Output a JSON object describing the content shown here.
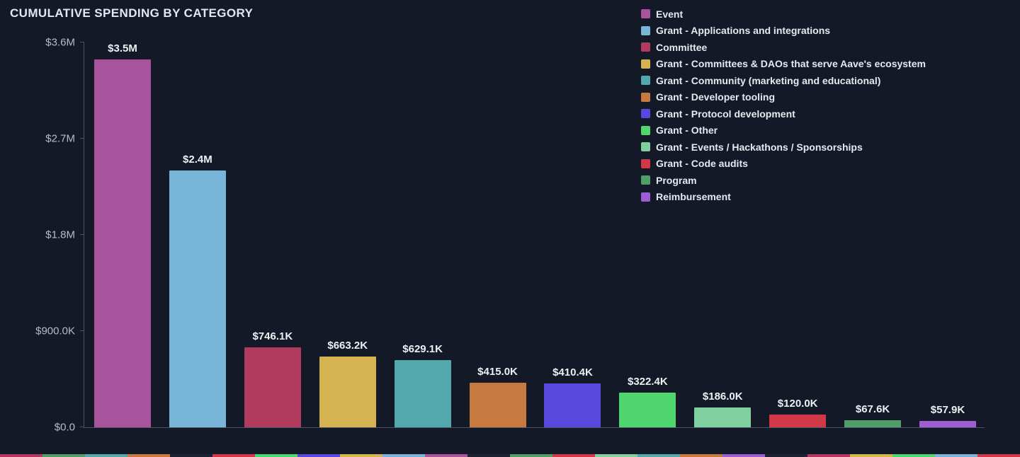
{
  "title": "CUMULATIVE SPENDING BY CATEGORY",
  "colors": {
    "background": "#141927",
    "axis": "#4a5163",
    "tick_label": "#b6bcc8",
    "value_label": "#edeff3",
    "title_text": "#e3e7ee",
    "legend_text": "#e6e9ee"
  },
  "legend": {
    "position": "top-right",
    "items": [
      {
        "label": "Event",
        "color": "#a8549c"
      },
      {
        "label": "Grant - Applications and integrations",
        "color": "#79b5d8"
      },
      {
        "label": "Committee",
        "color": "#b13a5f"
      },
      {
        "label": "Grant - Committees & DAOs that serve Aave's ecosystem",
        "color": "#d6b351"
      },
      {
        "label": "Grant - Community (marketing and educational)",
        "color": "#53a8ac"
      },
      {
        "label": "Grant - Developer tooling",
        "color": "#c77a3f"
      },
      {
        "label": "Grant - Protocol development",
        "color": "#5948dd"
      },
      {
        "label": "Grant - Other",
        "color": "#4fd66e"
      },
      {
        "label": "Grant - Events / Hackathons / Sponsorships",
        "color": "#7fcf9f"
      },
      {
        "label": "Grant - Code audits",
        "color": "#d23948"
      },
      {
        "label": "Program",
        "color": "#4e9e66"
      },
      {
        "label": "Reimbursement",
        "color": "#9d5ed3"
      }
    ]
  },
  "chart_data": {
    "type": "bar",
    "title": "CUMULATIVE SPENDING BY CATEGORY",
    "categories": [
      "Event",
      "Grant - Applications and integrations",
      "Committee",
      "Grant - Committees & DAOs that serve Aave's ecosystem",
      "Grant - Community (marketing and educational)",
      "Grant - Developer tooling",
      "Grant - Protocol development",
      "Grant - Other",
      "Grant - Events / Hackathons / Sponsorships",
      "Grant - Code audits",
      "Program",
      "Reimbursement"
    ],
    "values": [
      3500000,
      2400000,
      746100,
      663200,
      629100,
      415000,
      410400,
      322400,
      186000,
      120000,
      67600,
      57900
    ],
    "value_labels": [
      "$3.5M",
      "$2.4M",
      "$746.1K",
      "$663.2K",
      "$629.1K",
      "$415.0K",
      "$410.4K",
      "$322.4K",
      "$186.0K",
      "$120.0K",
      "$67.6K",
      "$57.9K"
    ],
    "bar_colors": [
      "#a8549c",
      "#79b5d8",
      "#b13a5f",
      "#d6b351",
      "#53a8ac",
      "#c77a3f",
      "#5948dd",
      "#4fd66e",
      "#7fcf9f",
      "#d23948",
      "#4e9e66",
      "#9d5ed3"
    ],
    "xlabel": "",
    "ylabel": "",
    "ylim": [
      0,
      3600000
    ],
    "yticks": [
      {
        "label": "$3.6M",
        "value": 3600000
      },
      {
        "label": "$2.7M",
        "value": 2700000
      },
      {
        "label": "$1.8M",
        "value": 1800000
      },
      {
        "label": "$900.0K",
        "value": 900000
      },
      {
        "label": "$0.0",
        "value": 0
      }
    ],
    "grid": false,
    "legend_position": "top-right"
  },
  "bottom_strip": {
    "segments": [
      "#b13a5f",
      "#4e9e66",
      "#53a8ac",
      "#c77a3f",
      "#1d2333",
      "#d23948",
      "#4fd66e",
      "#5948dd",
      "#d6b351",
      "#79b5d8",
      "#a8549c",
      "#1d2333",
      "#4e9e66",
      "#d23948",
      "#7fcf9f",
      "#53a8ac",
      "#c77a3f",
      "#9d5ed3",
      "#1d2333",
      "#b13a5f",
      "#d6b351",
      "#4fd66e",
      "#79b5d8",
      "#d23948"
    ]
  }
}
